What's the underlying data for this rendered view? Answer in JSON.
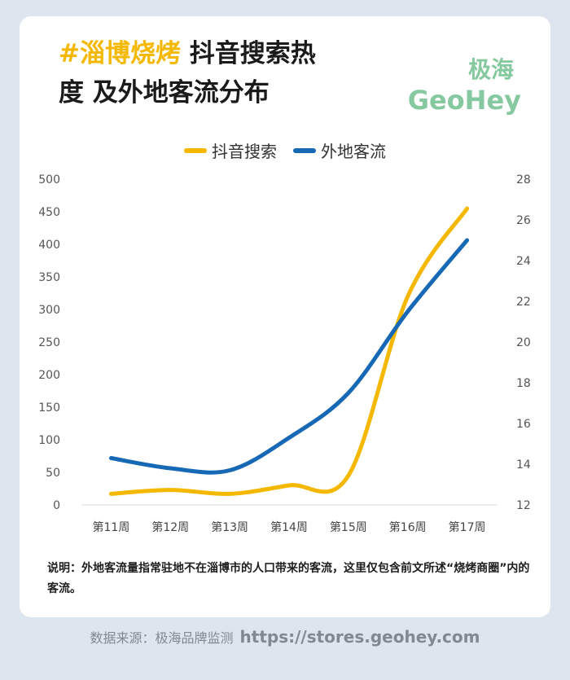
{
  "header": {
    "title_highlight": "#淄博烧烤",
    "title_rest_line1": " 抖音搜索热",
    "title_line2": "度 及外地客流分布"
  },
  "brand": {
    "name_cn": "极海",
    "name_en": "GeoHey"
  },
  "colors": {
    "search": "#f5b800",
    "visitors": "#1769b5",
    "brand": "#86c9a0"
  },
  "chart_data": {
    "type": "line",
    "x": [
      "第11周",
      "第12周",
      "第13周",
      "第14周",
      "第15周",
      "第16周",
      "第17周"
    ],
    "series": [
      {
        "name": "抖音搜索",
        "axis": "left",
        "values": [
          17,
          23,
          17,
          30,
          45,
          320,
          455
        ]
      },
      {
        "name": "外地客流",
        "axis": "right",
        "values": [
          14.3,
          13.8,
          13.7,
          15.3,
          17.5,
          21.5,
          25.0
        ]
      }
    ],
    "y_left": {
      "min": 0,
      "max": 500,
      "ticks": [
        "0",
        "50",
        "100",
        "150",
        "200",
        "250",
        "300",
        "350",
        "400",
        "450",
        "500"
      ]
    },
    "y_right": {
      "min": 12,
      "max": 28,
      "ticks": [
        "12",
        "14",
        "16",
        "18",
        "20",
        "22",
        "24",
        "26",
        "28"
      ]
    },
    "legend_position": "top-center",
    "grid": false,
    "smooth": true
  },
  "note": {
    "label": "说明：",
    "text": "外地客流量指常驻地不在淄博市的人口带来的客流，这里仅包含前文所述“烧烤商圈”内的客流。"
  },
  "source": {
    "label": "数据来源：极海品牌监测",
    "url": "https://stores.geohey.com"
  }
}
